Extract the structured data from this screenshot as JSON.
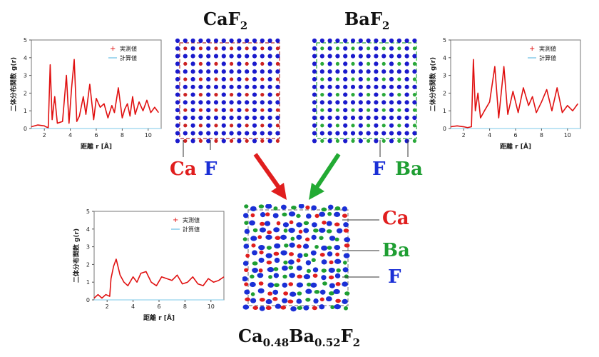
{
  "structures": {
    "caf2": {
      "title": "CaF",
      "title_sub": "2",
      "label_a": "Ca",
      "label_b": "F",
      "color_cation": "#cc2222",
      "color_anion": "#1a1acc",
      "box": "#b03030"
    },
    "baf2": {
      "title": "BaF",
      "title_sub": "2",
      "label_a": "F",
      "label_b": "Ba",
      "color_cation": "#2aa83a",
      "color_anion": "#1a1acc",
      "box": "#2aa83a"
    },
    "mixed": {
      "formula_parts": [
        "Ca",
        "0.48",
        "Ba",
        "0.52",
        "F",
        "2"
      ],
      "labels": [
        "Ca",
        "Ba",
        "F"
      ]
    }
  },
  "colors": {
    "ca": "#e01e1e",
    "f": "#1a2fd6",
    "ba": "#1e9e32",
    "curve": "#e01010",
    "calc": "#7ec8e8"
  },
  "charts": {
    "y_label_prefix": "二体分布関数",
    "y_label_var": "g(r)",
    "x_label_prefix": "距離",
    "x_label_var": "r",
    "x_label_unit": "[Å]",
    "legend_measured": "実測値",
    "legend_calc": "計算値"
  },
  "chart_data": [
    {
      "type": "line",
      "name": "left",
      "xlim": [
        1,
        11
      ],
      "ylim": [
        0,
        5
      ],
      "xticks": [
        2,
        4,
        6,
        8,
        10
      ],
      "yticks": [
        0,
        1,
        2,
        3,
        4,
        5
      ],
      "x": [
        1.0,
        1.5,
        2.0,
        2.1,
        2.3,
        2.45,
        2.6,
        2.8,
        3.0,
        3.4,
        3.7,
        3.9,
        4.1,
        4.3,
        4.5,
        4.7,
        5.0,
        5.2,
        5.5,
        5.8,
        6.0,
        6.3,
        6.6,
        6.9,
        7.2,
        7.4,
        7.7,
        8.0,
        8.2,
        8.4,
        8.6,
        8.8,
        9.0,
        9.3,
        9.6,
        9.9,
        10.2,
        10.5,
        10.8
      ],
      "y": [
        0.1,
        0.2,
        0.15,
        0.1,
        0.05,
        3.6,
        0.5,
        1.8,
        0.3,
        0.4,
        3.0,
        0.3,
        2.3,
        3.9,
        0.4,
        0.7,
        1.8,
        0.8,
        2.5,
        0.5,
        1.7,
        1.2,
        1.4,
        0.6,
        1.3,
        0.9,
        2.3,
        0.6,
        1.1,
        1.4,
        0.7,
        1.8,
        0.8,
        1.5,
        1.0,
        1.6,
        0.9,
        1.2,
        0.9
      ]
    },
    {
      "type": "line",
      "name": "right",
      "xlim": [
        1,
        11
      ],
      "ylim": [
        0,
        5
      ],
      "xticks": [
        2,
        4,
        6,
        8,
        10
      ],
      "yticks": [
        0,
        1,
        2,
        3,
        4,
        5
      ],
      "x": [
        1.0,
        1.5,
        2.0,
        2.3,
        2.6,
        2.75,
        2.9,
        3.1,
        3.3,
        3.6,
        4.0,
        4.4,
        4.7,
        5.1,
        5.4,
        5.8,
        6.2,
        6.6,
        7.0,
        7.3,
        7.6,
        8.0,
        8.4,
        8.8,
        9.2,
        9.6,
        10.0,
        10.4,
        10.8
      ],
      "y": [
        0.1,
        0.15,
        0.1,
        0.05,
        0.1,
        3.9,
        1.0,
        2.0,
        0.6,
        1.0,
        1.5,
        3.5,
        0.6,
        3.5,
        0.8,
        2.1,
        0.9,
        2.3,
        1.3,
        1.8,
        0.9,
        1.5,
        2.2,
        1.0,
        2.3,
        0.9,
        1.3,
        1.0,
        1.4
      ]
    },
    {
      "type": "line",
      "name": "bottom",
      "xlim": [
        1,
        11
      ],
      "ylim": [
        0,
        5
      ],
      "xticks": [
        2,
        4,
        6,
        8,
        10
      ],
      "yticks": [
        0,
        1,
        2,
        3,
        4,
        5
      ],
      "x": [
        1.0,
        1.3,
        1.6,
        1.9,
        2.2,
        2.3,
        2.5,
        2.7,
        3.0,
        3.3,
        3.6,
        4.0,
        4.3,
        4.6,
        5.0,
        5.4,
        5.8,
        6.2,
        6.6,
        7.0,
        7.4,
        7.8,
        8.2,
        8.6,
        9.0,
        9.4,
        9.8,
        10.2,
        10.6,
        11.0
      ],
      "y": [
        0.1,
        0.3,
        0.1,
        0.3,
        0.2,
        1.2,
        1.9,
        2.3,
        1.4,
        1.0,
        0.8,
        1.3,
        1.0,
        1.5,
        1.6,
        1.0,
        0.8,
        1.3,
        1.2,
        1.1,
        1.4,
        0.9,
        1.0,
        1.3,
        0.9,
        0.8,
        1.2,
        1.0,
        1.1,
        1.3
      ]
    }
  ]
}
